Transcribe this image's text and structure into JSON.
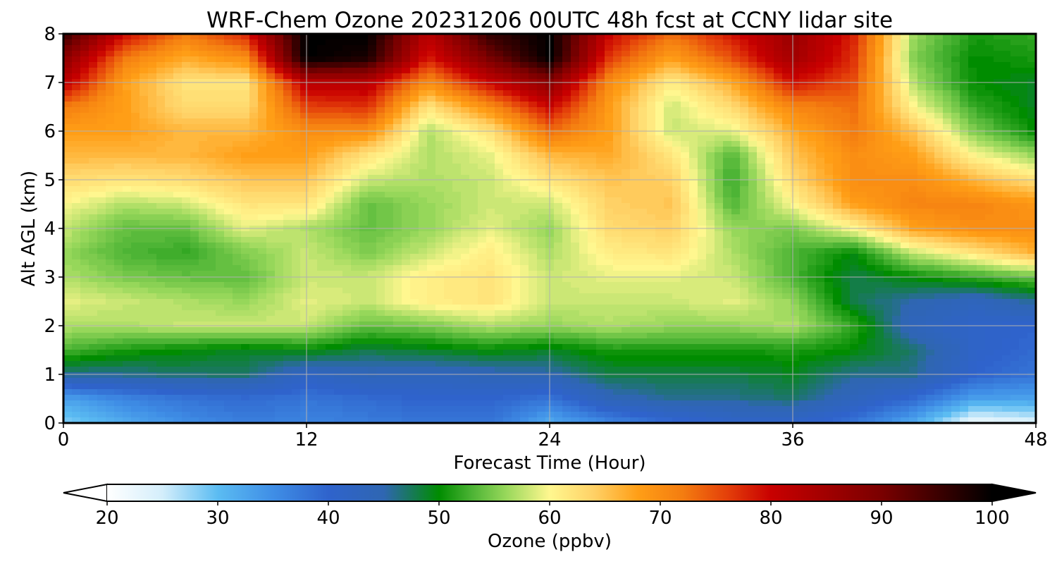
{
  "chart_data": {
    "type": "heatmap",
    "title": "WRF-Chem Ozone  20231206 00UTC 48h fcst at CCNY lidar site",
    "xlabel": "Forecast Time (Hour)",
    "ylabel": "Alt AGL (km)",
    "xlim": [
      0,
      48
    ],
    "ylim": [
      0,
      8
    ],
    "x_ticks": [
      "0",
      "12",
      "24",
      "36",
      "48"
    ],
    "y_ticks": [
      "0",
      "1",
      "2",
      "3",
      "4",
      "5",
      "6",
      "7",
      "8"
    ],
    "grid": true,
    "x_hours": [
      0,
      3,
      6,
      9,
      12,
      15,
      18,
      21,
      24,
      27,
      30,
      33,
      36,
      39,
      42,
      45,
      48
    ],
    "y_km": [
      0,
      0.5,
      1,
      1.5,
      2,
      2.5,
      3,
      3.5,
      4,
      4.5,
      5,
      5.5,
      6,
      6.5,
      7,
      7.5,
      8
    ],
    "ozone_ppbv": [
      [
        28,
        32,
        35,
        37,
        36,
        37,
        38,
        38,
        32,
        36,
        39,
        41,
        41,
        38,
        32,
        22,
        24
      ],
      [
        33,
        36,
        38,
        39,
        38,
        39,
        40,
        40,
        38,
        44,
        46,
        46,
        47,
        43,
        39,
        33,
        33
      ],
      [
        46,
        46,
        47,
        47,
        42,
        44,
        43,
        44,
        45,
        48,
        48,
        48,
        49,
        46,
        46,
        40,
        38
      ],
      [
        53,
        51,
        50,
        49,
        50,
        48,
        49,
        50,
        49,
        51,
        51,
        51,
        51,
        50,
        47,
        41,
        39
      ],
      [
        57,
        57,
        58,
        58,
        58,
        54,
        55,
        57,
        56,
        57,
        56,
        56,
        57,
        52,
        43,
        41,
        40
      ],
      [
        59,
        58,
        57,
        56,
        59,
        58,
        61,
        62,
        58,
        58,
        58,
        59,
        56,
        48,
        45,
        43,
        46
      ],
      [
        57,
        55,
        54,
        54,
        58,
        58,
        61,
        62,
        58,
        59,
        59,
        58,
        53,
        48,
        50,
        52,
        54
      ],
      [
        56,
        53,
        52,
        55,
        58,
        55,
        58,
        61,
        57,
        61,
        62,
        57,
        53,
        50,
        58,
        62,
        67
      ],
      [
        58,
        54,
        54,
        59,
        57,
        54,
        56,
        59,
        56,
        63,
        64,
        56,
        55,
        60,
        68,
        70,
        70
      ],
      [
        60,
        57,
        58,
        62,
        62,
        54,
        56,
        58,
        58,
        64,
        65,
        53,
        60,
        68,
        71,
        71,
        69
      ],
      [
        63,
        62,
        63,
        65,
        65,
        58,
        57,
        58,
        62,
        65,
        64,
        52,
        63,
        70,
        70,
        66,
        62
      ],
      [
        66,
        66,
        66,
        68,
        68,
        62,
        57,
        59,
        66,
        67,
        62,
        53,
        65,
        70,
        68,
        60,
        56
      ],
      [
        68,
        68,
        66,
        66,
        70,
        70,
        57,
        62,
        73,
        68,
        58,
        59,
        67,
        72,
        65,
        55,
        50
      ],
      [
        72,
        68,
        63,
        63,
        76,
        77,
        62,
        70,
        80,
        68,
        58,
        63,
        71,
        73,
        60,
        52,
        49
      ],
      [
        82,
        68,
        62,
        62,
        82,
        82,
        70,
        80,
        88,
        70,
        61,
        67,
        79,
        75,
        57,
        50,
        49
      ],
      [
        88,
        72,
        67,
        70,
        100,
        98,
        78,
        90,
        100,
        76,
        68,
        75,
        85,
        77,
        55,
        50,
        51
      ],
      [
        96,
        80,
        72,
        78,
        100,
        100,
        82,
        96,
        100,
        80,
        73,
        79,
        86,
        78,
        56,
        51,
        52
      ]
    ],
    "colorbar": {
      "label": "Ozone  (ppbv)",
      "min": 20,
      "max": 100,
      "ticks": [
        "20",
        "30",
        "40",
        "50",
        "60",
        "70",
        "80",
        "90",
        "100"
      ],
      "extend": "both"
    },
    "colors": {
      "stops": [
        [
          20,
          "#ffffff"
        ],
        [
          25,
          "#d4eefb"
        ],
        [
          30,
          "#5bbcf2"
        ],
        [
          35,
          "#3f8ee6"
        ],
        [
          40,
          "#2f63cc"
        ],
        [
          45,
          "#2f66b2"
        ],
        [
          50,
          "#008c00"
        ],
        [
          53,
          "#4db435"
        ],
        [
          56,
          "#96d75a"
        ],
        [
          60,
          "#fff78f"
        ],
        [
          64,
          "#ffd166"
        ],
        [
          68,
          "#ff9e16"
        ],
        [
          72,
          "#f47d10"
        ],
        [
          76,
          "#e4400a"
        ],
        [
          80,
          "#c80000"
        ],
        [
          90,
          "#7a0000"
        ],
        [
          100,
          "#000000"
        ]
      ],
      "under": "#ffffff",
      "over": "#000000",
      "grid": "#b0b0b0",
      "axes": "#000000"
    }
  }
}
